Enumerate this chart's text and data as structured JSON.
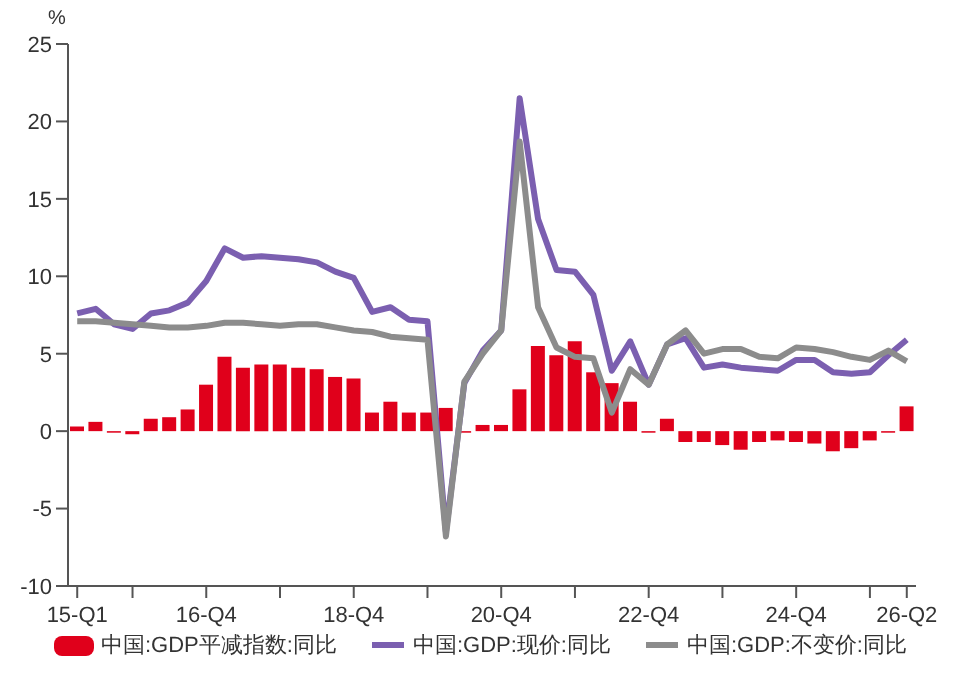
{
  "chart_data": {
    "type": "bar",
    "ylabel": "%",
    "categories": [
      "15-Q1",
      null,
      null,
      null,
      null,
      null,
      null,
      "16-Q4",
      null,
      null,
      null,
      null,
      null,
      null,
      null,
      "18-Q4",
      null,
      null,
      null,
      null,
      null,
      null,
      null,
      "20-Q4",
      null,
      null,
      null,
      null,
      null,
      null,
      null,
      "22-Q4",
      null,
      null,
      null,
      null,
      null,
      null,
      null,
      "24-Q4",
      null,
      null,
      null,
      null,
      null,
      "26-Q2"
    ],
    "series": [
      {
        "name": "中国:GDP平减指数:同比",
        "color": "#e0001b",
        "values": [
          0.3,
          0.6,
          -0.1,
          -0.2,
          0.8,
          0.9,
          1.4,
          3.0,
          4.8,
          4.1,
          4.3,
          4.3,
          4.1,
          4.0,
          3.5,
          3.4,
          1.2,
          1.9,
          1.2,
          1.2,
          1.5,
          -0.1,
          0.4,
          0.4,
          2.7,
          5.5,
          4.9,
          5.8,
          3.8,
          3.1,
          1.9,
          -0.1,
          0.8,
          -0.7,
          -0.7,
          -0.9,
          -1.2,
          -0.7,
          -0.6,
          -0.7,
          -0.8,
          -1.3,
          -1.1,
          -0.6,
          -0.1,
          1.6
        ]
      },
      {
        "name": "中国:GDP:现价:同比",
        "type": "line",
        "color": "#7b5fb0",
        "values": [
          7.6,
          7.9,
          6.9,
          6.6,
          7.6,
          7.8,
          8.3,
          9.7,
          11.8,
          11.2,
          11.3,
          11.2,
          11.1,
          10.9,
          10.3,
          9.9,
          7.7,
          8.0,
          7.2,
          7.1,
          -6.5,
          3.1,
          5.2,
          6.5,
          21.5,
          13.7,
          10.4,
          10.3,
          8.8,
          3.9,
          5.8,
          3.0,
          5.6,
          6.0,
          4.1,
          4.3,
          4.1,
          4.0,
          3.9,
          4.6,
          4.6,
          3.8,
          3.7,
          3.8,
          4.9,
          5.9
        ]
      },
      {
        "name": "中国:GDP:不变价:同比",
        "type": "line",
        "color": "#8c8c8c",
        "values": [
          7.1,
          7.1,
          7.0,
          6.9,
          6.8,
          6.7,
          6.7,
          6.8,
          7.0,
          7.0,
          6.9,
          6.8,
          6.9,
          6.9,
          6.7,
          6.5,
          6.4,
          6.1,
          6.0,
          5.9,
          -6.8,
          3.2,
          5.0,
          6.5,
          18.7,
          8.0,
          5.4,
          4.8,
          4.7,
          1.2,
          4.0,
          3.0,
          5.6,
          6.5,
          5.0,
          5.3,
          5.3,
          4.8,
          4.7,
          5.4,
          5.3,
          5.1,
          4.8,
          4.6,
          5.2,
          4.5
        ]
      }
    ],
    "ylim": [
      -10,
      25
    ],
    "yticks": [
      -10,
      -5,
      0,
      5,
      10,
      15,
      20,
      25
    ],
    "grid": false,
    "legend": "bottom",
    "marker": "none",
    "line_style": "solid"
  }
}
